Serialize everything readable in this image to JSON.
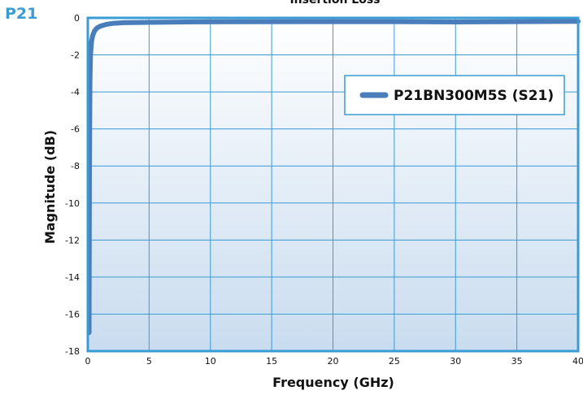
{
  "corner_label": "P21",
  "chart_data": {
    "type": "line",
    "title": "Insertion Loss",
    "xlabel": "Frequency (GHz)",
    "ylabel": "Magnitude (dB)",
    "xlim": [
      0,
      40
    ],
    "ylim": [
      -18,
      0
    ],
    "x_ticks": [
      0,
      5,
      10,
      15,
      20,
      25,
      30,
      35,
      40
    ],
    "y_ticks": [
      0,
      -2,
      -4,
      -6,
      -8,
      -10,
      -12,
      -14,
      -16,
      -18
    ],
    "grid": true,
    "legend_position": "top-right",
    "colors": {
      "series": "#4a7ebb",
      "grid": "#3a9bd5",
      "frame": "#3a9bd5"
    },
    "series": [
      {
        "name": "P21BN300M5S (S21)",
        "x": [
          0.1,
          0.13,
          0.17,
          0.22,
          0.3,
          0.4,
          0.55,
          0.75,
          1.0,
          1.5,
          2.0,
          3.0,
          5.0,
          8.0,
          12.0,
          20.0,
          25.0,
          30.0,
          35.0,
          40.0
        ],
        "y": [
          -17.0,
          -8.0,
          -3.5,
          -2.0,
          -1.3,
          -0.95,
          -0.7,
          -0.55,
          -0.45,
          -0.35,
          -0.3,
          -0.26,
          -0.24,
          -0.22,
          -0.21,
          -0.2,
          -0.2,
          -0.22,
          -0.2,
          -0.19
        ]
      }
    ]
  }
}
